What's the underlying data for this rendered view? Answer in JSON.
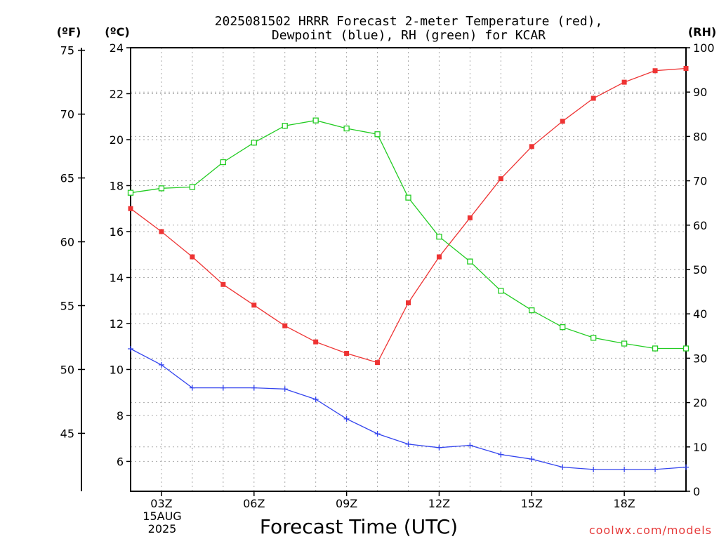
{
  "chart_data": {
    "type": "line",
    "title_lines": [
      "2025081502 HRRR Forecast 2-meter Temperature (red),",
      "Dewpoint (blue), RH (green) for KCAR"
    ],
    "xlabel": "Forecast Time (UTC)",
    "x_date_lines": [
      "15AUG",
      "2025"
    ],
    "units": {
      "left_f": "(ºF)",
      "left_c": "(ºC)",
      "right_rh": "(RH)"
    },
    "credit": "coolwx.com/models",
    "x": [
      2,
      3,
      4,
      5,
      6,
      7,
      8,
      9,
      10,
      11,
      12,
      13,
      14,
      15,
      16,
      17,
      18,
      19,
      20
    ],
    "xlim": [
      2,
      20
    ],
    "x_ticks": [
      3,
      6,
      9,
      12,
      15,
      18
    ],
    "x_tick_labels": [
      "03Z",
      "06Z",
      "09Z",
      "12Z",
      "15Z",
      "18Z"
    ],
    "c_lim": [
      4.7,
      24
    ],
    "c_ticks": [
      6,
      8,
      10,
      12,
      14,
      16,
      18,
      20,
      22,
      24
    ],
    "f_ticks": [
      45,
      50,
      55,
      60,
      65,
      70,
      75
    ],
    "rh_lim": [
      0,
      100
    ],
    "rh_ticks": [
      0,
      10,
      20,
      30,
      40,
      50,
      60,
      70,
      80,
      90,
      100
    ],
    "grid": true,
    "series": [
      {
        "axis": "c",
        "color": "#ee3333",
        "marker": "filled-square",
        "values": [
          17.0,
          16.0,
          14.9,
          13.7,
          12.8,
          11.9,
          11.2,
          10.7,
          10.3,
          12.9,
          14.9,
          16.6,
          18.3,
          19.7,
          20.8,
          21.8,
          22.5,
          23.0,
          23.1
        ]
      },
      {
        "axis": "c",
        "color": "#3344ee",
        "marker": "plus",
        "values": [
          10.9,
          10.2,
          9.2,
          9.2,
          9.2,
          9.15,
          8.7,
          7.85,
          7.2,
          6.75,
          6.6,
          6.7,
          6.3,
          6.1,
          5.75,
          5.65,
          5.65,
          5.65,
          5.75
        ]
      },
      {
        "axis": "rh",
        "color": "#22cc22",
        "marker": "open-square",
        "values": [
          67.3,
          68.3,
          68.6,
          74.2,
          78.6,
          82.4,
          83.6,
          81.8,
          80.5,
          66.2,
          57.4,
          51.8,
          45.2,
          40.8,
          37.0,
          34.6,
          33.3,
          32.2,
          32.2
        ]
      }
    ]
  }
}
